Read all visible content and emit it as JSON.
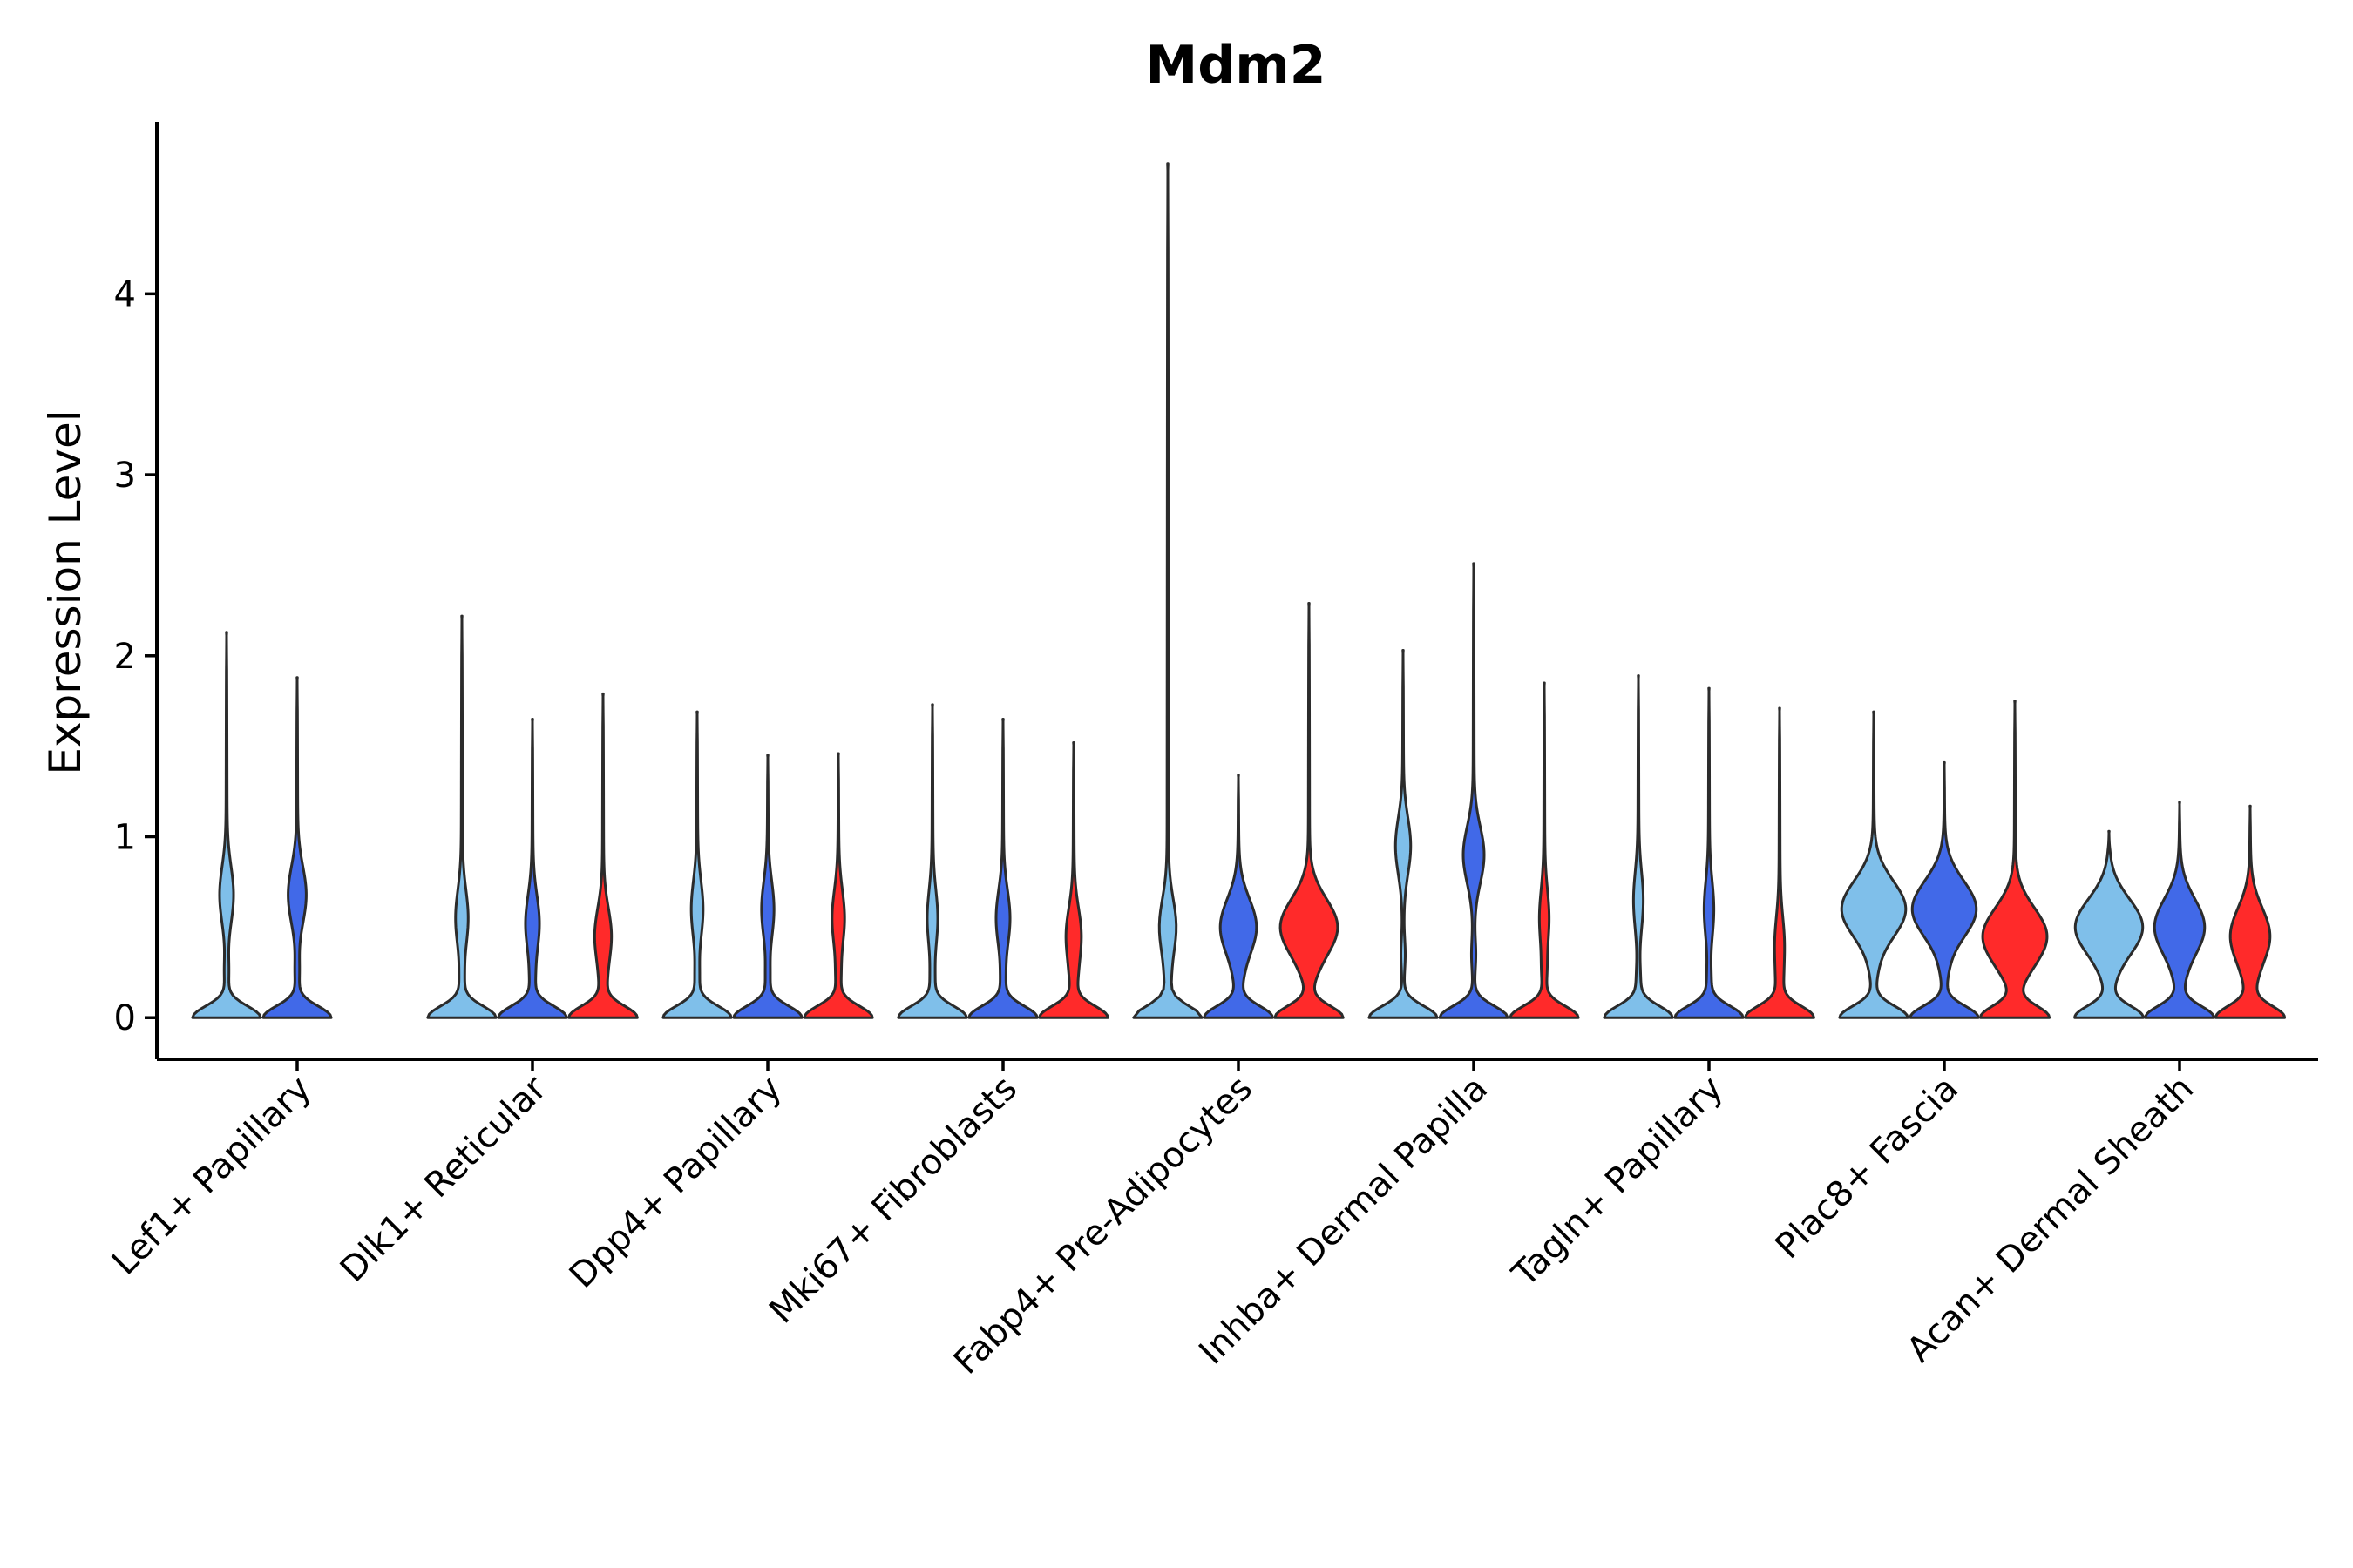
{
  "chart_data": {
    "type": "violin",
    "title": "Mdm2",
    "xlabel": "",
    "ylabel": "Expression Level",
    "ylim": [
      -0.23,
      4.95
    ],
    "yticks": [
      0,
      1,
      2,
      3,
      4
    ],
    "ytick_labels": [
      "0",
      "1",
      "2",
      "3",
      "4"
    ],
    "categories": [
      "Lef1+ Papillary",
      "Dlk1+ Reticular",
      "Dpp4+ Papillary",
      "Mki67+ Fibroblasts",
      "Fabp4+ Pre-Adipocytes",
      "Inhba+ Dermal Papilla",
      "Tagln+ Papillary",
      "Plac8+ Fascia",
      "Acan+ Dermal Sheath"
    ],
    "group_colors": [
      "#7fbfea",
      "#4169e8",
      "#ff2a2a"
    ],
    "violins": [
      {
        "category": 0,
        "group": 0,
        "max": 2.13,
        "w0": 0.95,
        "modeY": 0.68,
        "modeW": 0.18,
        "neckY": 0.25
      },
      {
        "category": 0,
        "group": 1,
        "max": 1.88,
        "w0": 0.95,
        "modeY": 0.68,
        "modeW": 0.24,
        "neckY": 0.25
      },
      {
        "category": 1,
        "group": 0,
        "max": 2.22,
        "w0": 0.95,
        "modeY": 0.55,
        "modeW": 0.16,
        "neckY": 0.2
      },
      {
        "category": 1,
        "group": 1,
        "max": 1.65,
        "w0": 0.95,
        "modeY": 0.52,
        "modeW": 0.18,
        "neckY": 0.2
      },
      {
        "category": 1,
        "group": 2,
        "max": 1.79,
        "w0": 0.95,
        "modeY": 0.45,
        "modeW": 0.22,
        "neckY": 0.18
      },
      {
        "category": 2,
        "group": 0,
        "max": 1.69,
        "w0": 0.95,
        "modeY": 0.6,
        "modeW": 0.15,
        "neckY": 0.22
      },
      {
        "category": 2,
        "group": 1,
        "max": 1.45,
        "w0": 0.95,
        "modeY": 0.6,
        "modeW": 0.16,
        "neckY": 0.22
      },
      {
        "category": 2,
        "group": 2,
        "max": 1.46,
        "w0": 0.95,
        "modeY": 0.55,
        "modeW": 0.16,
        "neckY": 0.22
      },
      {
        "category": 3,
        "group": 0,
        "max": 1.73,
        "w0": 0.95,
        "modeY": 0.55,
        "modeW": 0.13,
        "neckY": 0.2
      },
      {
        "category": 3,
        "group": 1,
        "max": 1.65,
        "w0": 0.95,
        "modeY": 0.55,
        "modeW": 0.18,
        "neckY": 0.2
      },
      {
        "category": 3,
        "group": 2,
        "max": 1.52,
        "w0": 0.95,
        "modeY": 0.45,
        "modeW": 0.2,
        "neckY": 0.2
      },
      {
        "category": 4,
        "group": 0,
        "max": 4.72,
        "w0": 0.95,
        "modeY": 0.5,
        "modeW": 0.22,
        "neckY": 0.2
      },
      {
        "category": 4,
        "group": 1,
        "max": 1.34,
        "w0": 0.95,
        "modeY": 0.5,
        "modeW": 0.5,
        "neckY": 0.2
      },
      {
        "category": 4,
        "group": 2,
        "max": 2.29,
        "w0": 0.95,
        "modeY": 0.5,
        "modeW": 0.8,
        "neckY": 0.25
      },
      {
        "category": 5,
        "group": 0,
        "max": 2.03,
        "w0": 0.95,
        "modeY": 0.95,
        "modeW": 0.2,
        "neckY": 0.35
      },
      {
        "category": 5,
        "group": 1,
        "max": 2.51,
        "w0": 0.95,
        "modeY": 0.9,
        "modeW": 0.28,
        "neckY": 0.35
      },
      {
        "category": 5,
        "group": 2,
        "max": 1.85,
        "w0": 0.95,
        "modeY": 0.55,
        "modeW": 0.12,
        "neckY": 0.25
      },
      {
        "category": 6,
        "group": 0,
        "max": 1.89,
        "w0": 0.95,
        "modeY": 0.65,
        "modeW": 0.12,
        "neckY": 0.2
      },
      {
        "category": 6,
        "group": 1,
        "max": 1.82,
        "w0": 0.95,
        "modeY": 0.6,
        "modeW": 0.12,
        "neckY": 0.2
      },
      {
        "category": 6,
        "group": 2,
        "max": 1.71,
        "w0": 0.95,
        "modeY": 0.4,
        "modeW": 0.12,
        "neckY": 0.18
      },
      {
        "category": 7,
        "group": 0,
        "max": 1.69,
        "w0": 0.95,
        "modeY": 0.6,
        "modeW": 0.9,
        "neckY": 0.25
      },
      {
        "category": 7,
        "group": 1,
        "max": 1.41,
        "w0": 0.95,
        "modeY": 0.6,
        "modeW": 0.9,
        "neckY": 0.25
      },
      {
        "category": 7,
        "group": 2,
        "max": 1.75,
        "w0": 0.95,
        "modeY": 0.45,
        "modeW": 0.9,
        "neckY": 0.25
      },
      {
        "category": 8,
        "group": 0,
        "max": 1.03,
        "w0": 0.95,
        "modeY": 0.5,
        "modeW": 0.95,
        "neckY": 0.2
      },
      {
        "category": 8,
        "group": 1,
        "max": 1.19,
        "w0": 0.95,
        "modeY": 0.5,
        "modeW": 0.7,
        "neckY": 0.2
      },
      {
        "category": 8,
        "group": 2,
        "max": 1.17,
        "w0": 0.95,
        "modeY": 0.45,
        "modeW": 0.55,
        "neckY": 0.18
      }
    ]
  }
}
